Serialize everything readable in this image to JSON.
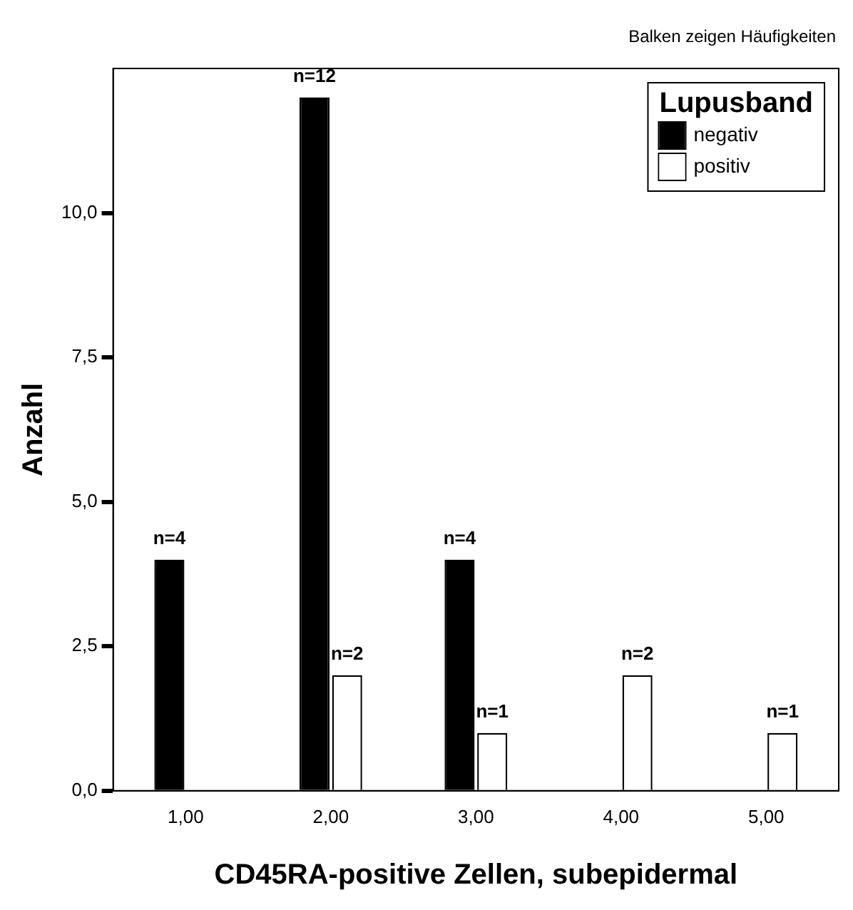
{
  "chart_data": {
    "type": "bar",
    "xlabel": "CD45RA-positive Zellen, subepidermal",
    "ylabel": "Anzahl",
    "annotations": [
      "Balken zeigen Häufigkeiten"
    ],
    "categories": [
      "1,00",
      "2,00",
      "3,00",
      "4,00",
      "5,00"
    ],
    "series": [
      {
        "name": "negativ",
        "color": "#000000",
        "values": [
          4,
          12,
          4,
          0,
          0
        ],
        "value_labels": [
          "n=4",
          "n=12",
          "n=4",
          null,
          null
        ]
      },
      {
        "name": "positiv",
        "color": "#ffffff",
        "values": [
          0,
          2,
          1,
          2,
          1
        ],
        "value_labels": [
          null,
          "n=2",
          "n=1",
          "n=2",
          "n=1"
        ]
      }
    ],
    "legend_title": "Lupusband",
    "legend": "top right",
    "grid": false,
    "ylim": [
      0,
      12.5
    ],
    "yticks": [
      {
        "value": 0,
        "label": "0,0"
      },
      {
        "value": 2.5,
        "label": "2,5"
      },
      {
        "value": 5,
        "label": "5,0"
      },
      {
        "value": 7.5,
        "label": "7,5"
      },
      {
        "value": 10,
        "label": "10,0"
      }
    ]
  }
}
